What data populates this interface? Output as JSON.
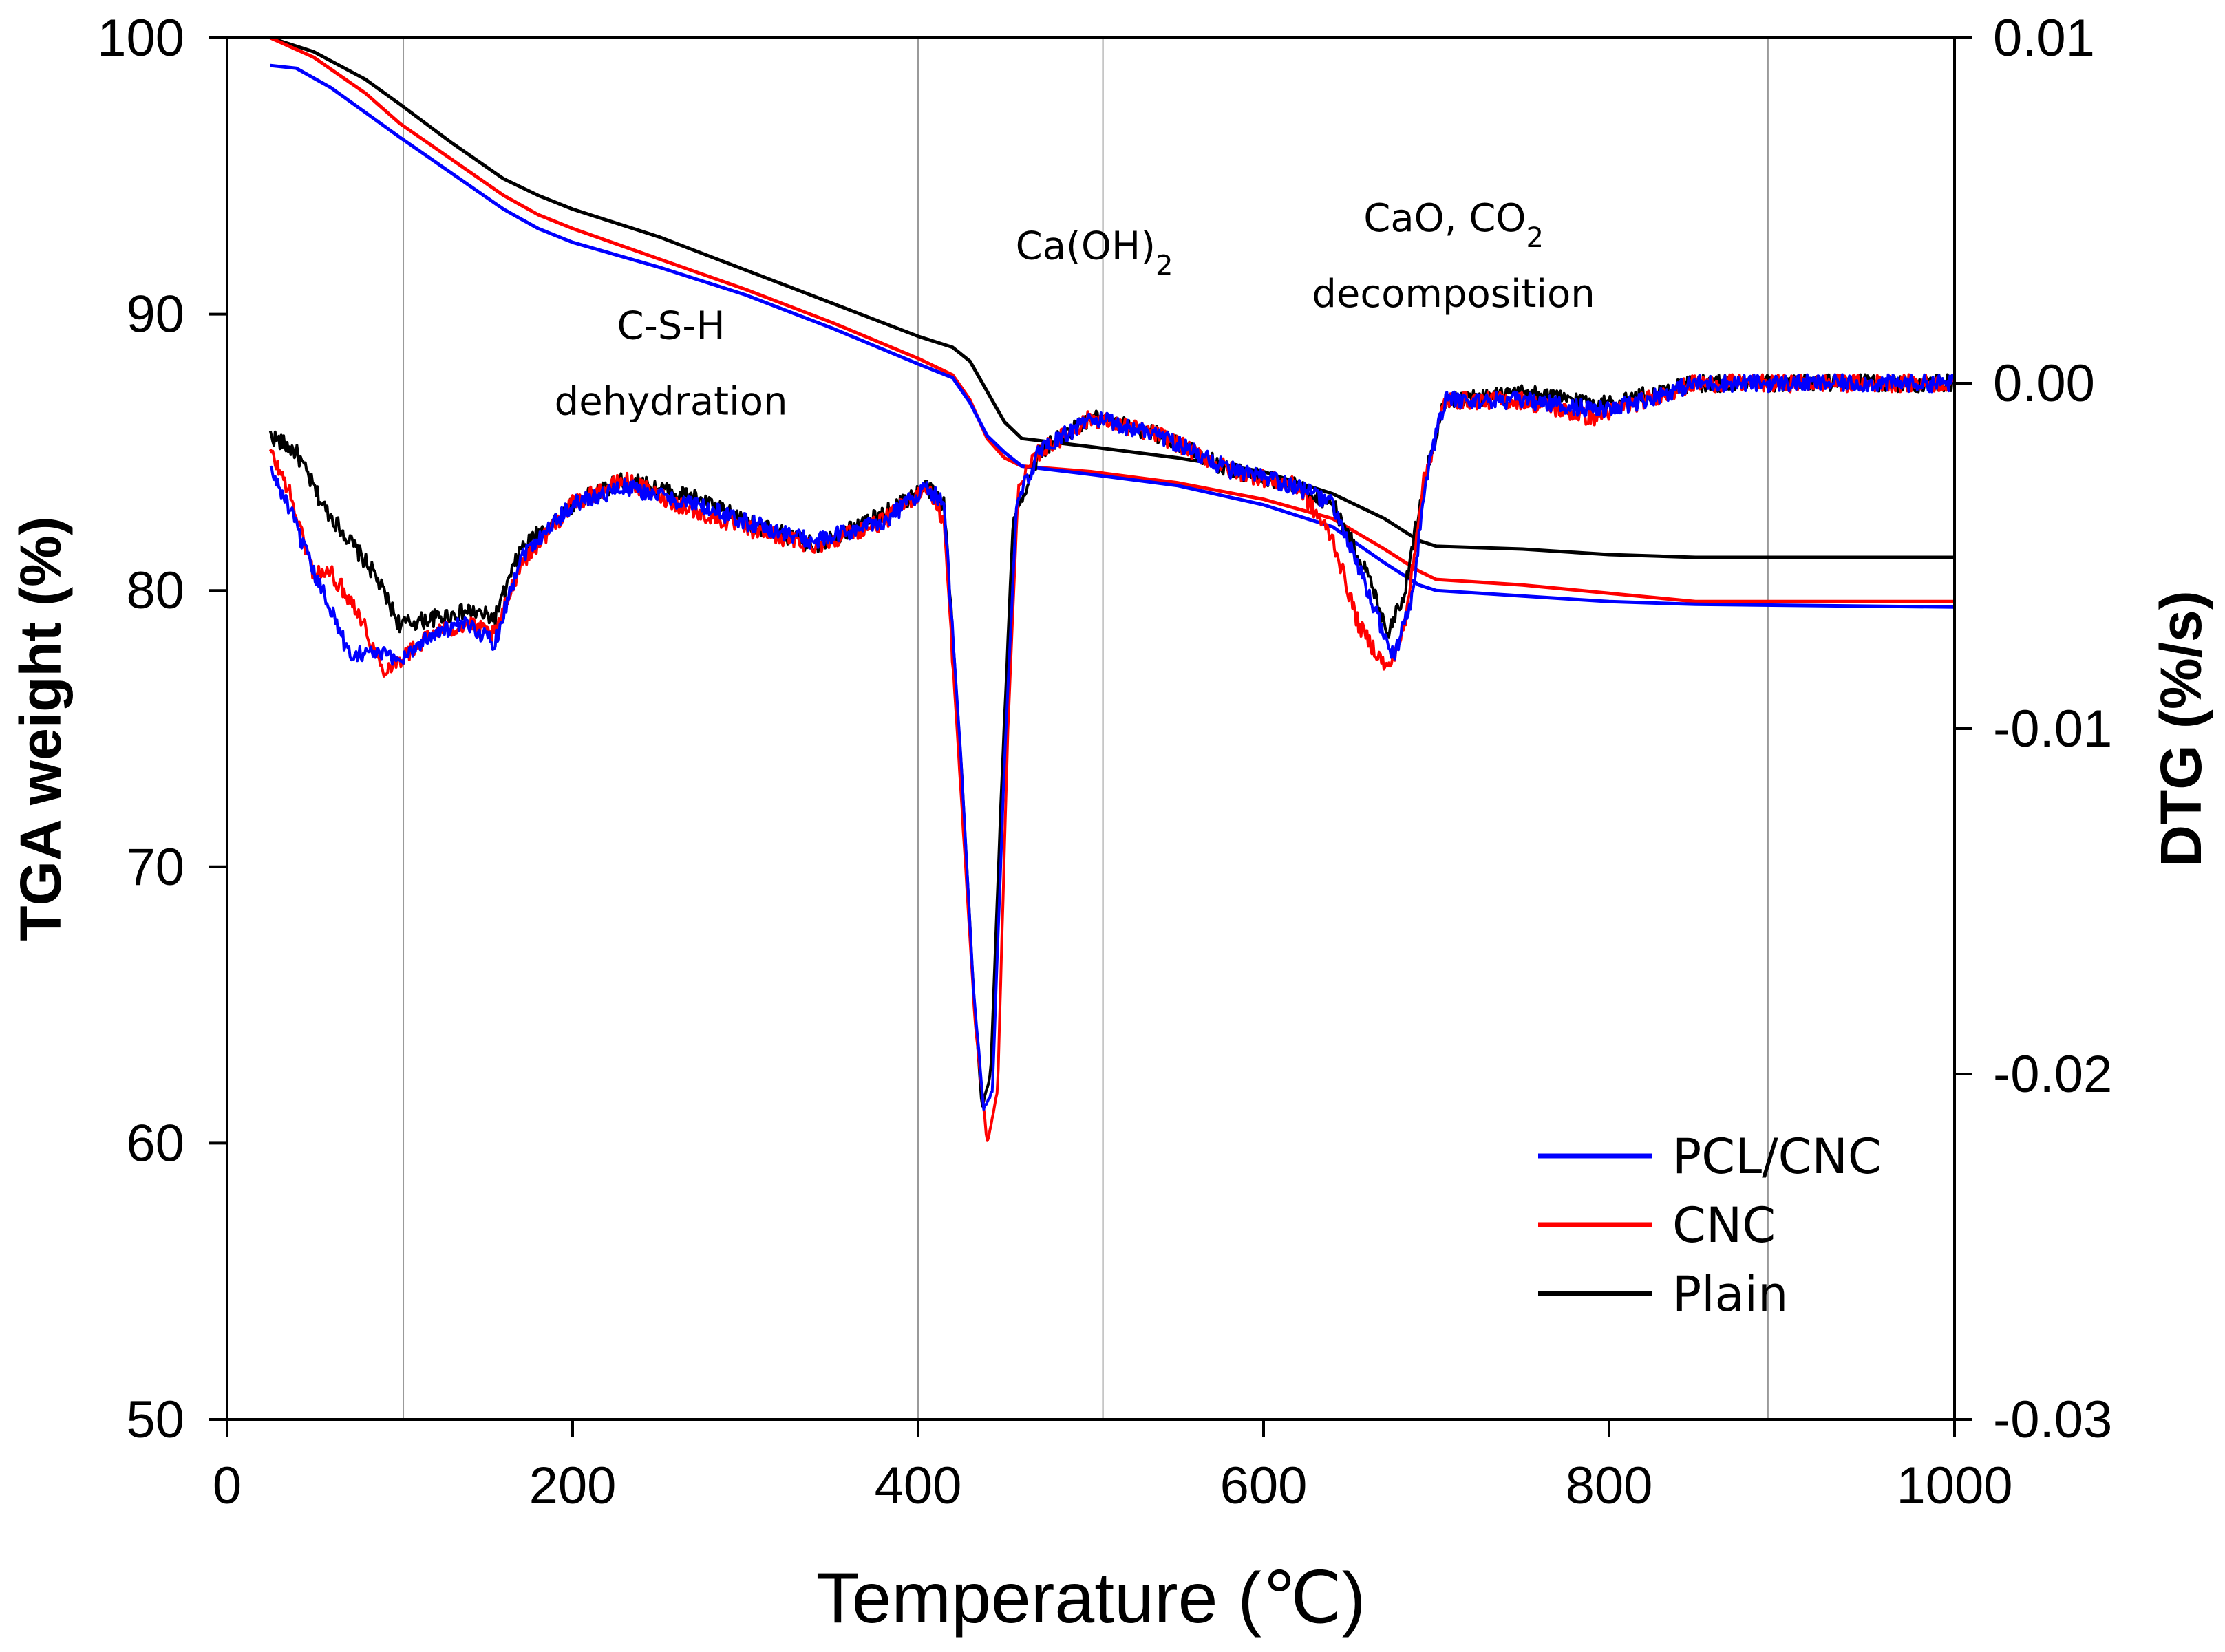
{
  "chart_data": {
    "type": "line",
    "xlabel": "Temperature (℃)",
    "ylabel_left": "TGA weight  (%)",
    "ylabel_right": "DTG (%/s)",
    "xlim": [
      0,
      1000
    ],
    "ylim_left": [
      50,
      100
    ],
    "ylim_right": [
      -0.03,
      0.01
    ],
    "x_ticks": [
      0,
      200,
      400,
      600,
      800,
      1000
    ],
    "x_tick_labels": [
      "0",
      "200",
      "400",
      "600",
      "800",
      "1000"
    ],
    "y_left_ticks": [
      50,
      60,
      70,
      80,
      90,
      100
    ],
    "y_left_tick_labels": [
      "50",
      "60",
      "70",
      "80",
      "90",
      "100"
    ],
    "y_right_ticks": [
      -0.03,
      -0.02,
      -0.01,
      0.0,
      0.01
    ],
    "y_right_tick_labels": [
      "-0.03",
      "-0.02",
      "-0.01",
      "0.00",
      "0.01"
    ],
    "vertical_reference_lines": [
      102,
      400,
      507,
      892
    ],
    "annotations": [
      {
        "id": "csh",
        "lines": [
          "C-S-H",
          "dehydration"
        ],
        "x": 257,
        "y_left": 89.1
      },
      {
        "id": "caoh2",
        "base": "Ca(OH)",
        "sub": "2",
        "x": 502,
        "y_left": 92.0
      },
      {
        "id": "caco",
        "base": "CaO, CO",
        "sub": "2",
        "line2": "decomposition",
        "x": 710,
        "y_left": 93.0
      }
    ],
    "legend": {
      "position": "bottom-right",
      "entries": [
        {
          "name": "PCL/CNC",
          "color": "#0000ff"
        },
        {
          "name": "CNC",
          "color": "#ff0000"
        },
        {
          "name": "Plain",
          "color": "#000000"
        }
      ]
    },
    "series": [
      {
        "name": "Plain",
        "kind": "TGA",
        "axis": "left",
        "color": "#000000",
        "points": [
          [
            25,
            100.0
          ],
          [
            50,
            99.5
          ],
          [
            80,
            98.5
          ],
          [
            100,
            97.6
          ],
          [
            130,
            96.2
          ],
          [
            160,
            94.9
          ],
          [
            180,
            94.3
          ],
          [
            200,
            93.8
          ],
          [
            250,
            92.8
          ],
          [
            300,
            91.6
          ],
          [
            350,
            90.4
          ],
          [
            400,
            89.2
          ],
          [
            420,
            88.8
          ],
          [
            430,
            88.3
          ],
          [
            440,
            87.2
          ],
          [
            450,
            86.1
          ],
          [
            460,
            85.5
          ],
          [
            500,
            85.2
          ],
          [
            550,
            84.8
          ],
          [
            600,
            84.3
          ],
          [
            640,
            83.5
          ],
          [
            670,
            82.6
          ],
          [
            690,
            81.8
          ],
          [
            700,
            81.6
          ],
          [
            750,
            81.5
          ],
          [
            800,
            81.3
          ],
          [
            850,
            81.2
          ],
          [
            1000,
            81.2
          ]
        ]
      },
      {
        "name": "CNC",
        "kind": "TGA",
        "axis": "left",
        "color": "#ff0000",
        "points": [
          [
            25,
            100.0
          ],
          [
            50,
            99.3
          ],
          [
            80,
            98.0
          ],
          [
            100,
            96.9
          ],
          [
            130,
            95.6
          ],
          [
            160,
            94.3
          ],
          [
            180,
            93.6
          ],
          [
            200,
            93.1
          ],
          [
            250,
            92.0
          ],
          [
            300,
            90.9
          ],
          [
            350,
            89.7
          ],
          [
            400,
            88.4
          ],
          [
            420,
            87.8
          ],
          [
            430,
            86.9
          ],
          [
            440,
            85.5
          ],
          [
            450,
            84.8
          ],
          [
            460,
            84.5
          ],
          [
            500,
            84.3
          ],
          [
            550,
            83.9
          ],
          [
            600,
            83.3
          ],
          [
            640,
            82.6
          ],
          [
            670,
            81.5
          ],
          [
            690,
            80.7
          ],
          [
            700,
            80.4
          ],
          [
            750,
            80.2
          ],
          [
            800,
            79.9
          ],
          [
            850,
            79.6
          ],
          [
            1000,
            79.6
          ]
        ]
      },
      {
        "name": "PCL/CNC",
        "kind": "TGA",
        "axis": "left",
        "color": "#0000ff",
        "points": [
          [
            25,
            99.0
          ],
          [
            40,
            98.9
          ],
          [
            60,
            98.2
          ],
          [
            80,
            97.3
          ],
          [
            100,
            96.4
          ],
          [
            130,
            95.1
          ],
          [
            160,
            93.8
          ],
          [
            180,
            93.1
          ],
          [
            200,
            92.6
          ],
          [
            250,
            91.7
          ],
          [
            300,
            90.7
          ],
          [
            350,
            89.5
          ],
          [
            400,
            88.2
          ],
          [
            420,
            87.7
          ],
          [
            430,
            86.8
          ],
          [
            440,
            85.6
          ],
          [
            450,
            85.0
          ],
          [
            460,
            84.5
          ],
          [
            500,
            84.2
          ],
          [
            550,
            83.8
          ],
          [
            600,
            83.1
          ],
          [
            640,
            82.3
          ],
          [
            670,
            81.0
          ],
          [
            690,
            80.2
          ],
          [
            700,
            80.0
          ],
          [
            750,
            79.8
          ],
          [
            800,
            79.6
          ],
          [
            850,
            79.5
          ],
          [
            1000,
            79.4
          ]
        ]
      },
      {
        "name": "Plain",
        "kind": "DTG",
        "axis": "right",
        "color": "#000000",
        "points": [
          [
            25,
            -0.0015
          ],
          [
            40,
            -0.002
          ],
          [
            55,
            -0.0035
          ],
          [
            70,
            -0.0045
          ],
          [
            85,
            -0.0055
          ],
          [
            100,
            -0.007
          ],
          [
            120,
            -0.0068
          ],
          [
            140,
            -0.0066
          ],
          [
            155,
            -0.0068
          ],
          [
            170,
            -0.0048
          ],
          [
            200,
            -0.0035
          ],
          [
            230,
            -0.0028
          ],
          [
            270,
            -0.0033
          ],
          [
            300,
            -0.004
          ],
          [
            340,
            -0.0047
          ],
          [
            380,
            -0.0038
          ],
          [
            405,
            -0.003
          ],
          [
            415,
            -0.0035
          ],
          [
            425,
            -0.011
          ],
          [
            432,
            -0.0175
          ],
          [
            437,
            -0.021
          ],
          [
            442,
            -0.02
          ],
          [
            448,
            -0.012
          ],
          [
            455,
            -0.004
          ],
          [
            470,
            -0.002
          ],
          [
            500,
            -0.001
          ],
          [
            540,
            -0.0015
          ],
          [
            580,
            -0.0025
          ],
          [
            620,
            -0.003
          ],
          [
            640,
            -0.0035
          ],
          [
            660,
            -0.0055
          ],
          [
            672,
            -0.0072
          ],
          [
            682,
            -0.006
          ],
          [
            692,
            -0.003
          ],
          [
            705,
            -0.0005
          ],
          [
            750,
            -0.0003
          ],
          [
            800,
            -0.0006
          ],
          [
            850,
            0.0
          ],
          [
            900,
            0.0
          ],
          [
            1000,
            0.0
          ]
        ]
      },
      {
        "name": "CNC",
        "kind": "DTG",
        "axis": "right",
        "color": "#ff0000",
        "points": [
          [
            25,
            -0.002
          ],
          [
            35,
            -0.003
          ],
          [
            50,
            -0.0055
          ],
          [
            60,
            -0.0055
          ],
          [
            75,
            -0.0065
          ],
          [
            90,
            -0.0083
          ],
          [
            100,
            -0.008
          ],
          [
            120,
            -0.0072
          ],
          [
            140,
            -0.007
          ],
          [
            155,
            -0.0073
          ],
          [
            170,
            -0.0052
          ],
          [
            200,
            -0.0035
          ],
          [
            230,
            -0.0028
          ],
          [
            270,
            -0.0037
          ],
          [
            300,
            -0.0042
          ],
          [
            340,
            -0.0047
          ],
          [
            380,
            -0.004
          ],
          [
            405,
            -0.003
          ],
          [
            415,
            -0.004
          ],
          [
            425,
            -0.012
          ],
          [
            433,
            -0.0185
          ],
          [
            440,
            -0.022
          ],
          [
            446,
            -0.0205
          ],
          [
            452,
            -0.01
          ],
          [
            458,
            -0.003
          ],
          [
            470,
            -0.002
          ],
          [
            500,
            -0.001
          ],
          [
            540,
            -0.0015
          ],
          [
            580,
            -0.0025
          ],
          [
            620,
            -0.003
          ],
          [
            640,
            -0.0045
          ],
          [
            655,
            -0.007
          ],
          [
            672,
            -0.0083
          ],
          [
            682,
            -0.007
          ],
          [
            692,
            -0.003
          ],
          [
            705,
            -0.0005
          ],
          [
            750,
            -0.0005
          ],
          [
            790,
            -0.001
          ],
          [
            850,
            0.0
          ],
          [
            900,
            0.0
          ],
          [
            1000,
            0.0
          ]
        ]
      },
      {
        "name": "PCL/CNC",
        "kind": "DTG",
        "axis": "right",
        "color": "#0000ff",
        "points": [
          [
            25,
            -0.0025
          ],
          [
            35,
            -0.0035
          ],
          [
            50,
            -0.0055
          ],
          [
            60,
            -0.0065
          ],
          [
            70,
            -0.0078
          ],
          [
            85,
            -0.0078
          ],
          [
            100,
            -0.008
          ],
          [
            120,
            -0.0072
          ],
          [
            140,
            -0.007
          ],
          [
            155,
            -0.0075
          ],
          [
            170,
            -0.005
          ],
          [
            200,
            -0.0035
          ],
          [
            230,
            -0.003
          ],
          [
            270,
            -0.0035
          ],
          [
            300,
            -0.004
          ],
          [
            340,
            -0.0046
          ],
          [
            380,
            -0.004
          ],
          [
            405,
            -0.003
          ],
          [
            415,
            -0.0035
          ],
          [
            425,
            -0.011
          ],
          [
            432,
            -0.0175
          ],
          [
            438,
            -0.021
          ],
          [
            443,
            -0.0205
          ],
          [
            450,
            -0.011
          ],
          [
            457,
            -0.0035
          ],
          [
            470,
            -0.002
          ],
          [
            500,
            -0.001
          ],
          [
            540,
            -0.0015
          ],
          [
            580,
            -0.0025
          ],
          [
            620,
            -0.003
          ],
          [
            640,
            -0.0035
          ],
          [
            660,
            -0.006
          ],
          [
            675,
            -0.0079
          ],
          [
            685,
            -0.0065
          ],
          [
            695,
            -0.0025
          ],
          [
            705,
            -0.0005
          ],
          [
            750,
            -0.0005
          ],
          [
            800,
            -0.0008
          ],
          [
            850,
            0.0
          ],
          [
            900,
            0.0
          ],
          [
            1000,
            0.0
          ]
        ]
      }
    ]
  }
}
